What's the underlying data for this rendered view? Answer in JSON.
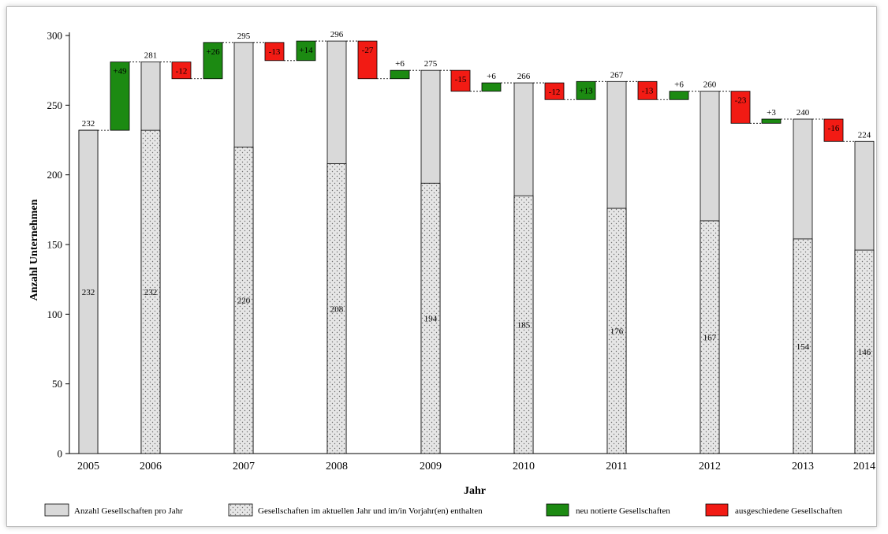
{
  "chart_data": {
    "type": "bar",
    "subtype": "waterfall",
    "xlabel": "Jahr",
    "ylabel": "Anzahl Unternehmen",
    "ylim": [
      0,
      300
    ],
    "yticks": [
      "0",
      "50",
      "100",
      "150",
      "200",
      "250",
      "300"
    ],
    "grid": false,
    "legend_position": "bottom",
    "years": [
      "2005",
      "2006",
      "2007",
      "2008",
      "2009",
      "2010",
      "2011",
      "2012",
      "2013",
      "2014"
    ],
    "totals": [
      232,
      281,
      295,
      296,
      275,
      266,
      267,
      260,
      240,
      224
    ],
    "carried_over": [
      232,
      232,
      220,
      208,
      194,
      185,
      176,
      167,
      154,
      146
    ],
    "changes": [
      {
        "after": "2005",
        "new": "+49",
        "new_value": 49,
        "removed": "",
        "removed_value": 0
      },
      {
        "after": "2006",
        "new": "+26",
        "new_value": 26,
        "removed": "-12",
        "removed_value": 12
      },
      {
        "after": "2007",
        "new": "+14",
        "new_value": 14,
        "removed": "-13",
        "removed_value": 13
      },
      {
        "after": "2008",
        "new": "+6",
        "new_value": 6,
        "removed": "-27",
        "removed_value": 27
      },
      {
        "after": "2009",
        "new": "+6",
        "new_value": 6,
        "removed": "-15",
        "removed_value": 15
      },
      {
        "after": "2010",
        "new": "+13",
        "new_value": 13,
        "removed": "-12",
        "removed_value": 12
      },
      {
        "after": "2011",
        "new": "+6",
        "new_value": 6,
        "removed": "-13",
        "removed_value": 13
      },
      {
        "after": "2012",
        "new": "+3",
        "new_value": 3,
        "removed": "-23",
        "removed_value": 23
      },
      {
        "after": "2013",
        "new": "",
        "new_value": 0,
        "removed": "-16",
        "removed_value": 16
      }
    ],
    "legend": [
      {
        "label": "Anzahl Gesellschaften pro Jahr",
        "kind": "total"
      },
      {
        "label": "Gesellschaften im aktuellen Jahr und im/in Vorjahr(en) enthalten",
        "kind": "carried"
      },
      {
        "label": "neu notierte Gesellschaften",
        "kind": "new"
      },
      {
        "label": "ausgeschiedene Gesellschaften",
        "kind": "removed"
      }
    ],
    "colors": {
      "total": "#d9d9d9",
      "carried": "#e6e6e6",
      "carried_dot": "#6e6e6e",
      "new": "#1c8a12",
      "removed": "#f21b14",
      "outline": "#000000"
    }
  }
}
